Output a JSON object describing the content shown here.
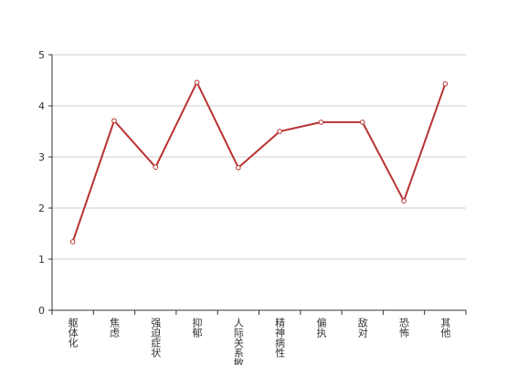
{
  "chart_data": {
    "type": "line",
    "categories": [
      "躯体化",
      "焦虑",
      "强迫症状",
      "抑郁",
      "人际关系敏感",
      "精神病性",
      "偏执",
      "敌对",
      "恐怖",
      "其他"
    ],
    "values": [
      1.34,
      3.71,
      2.8,
      4.46,
      2.79,
      3.5,
      3.68,
      3.68,
      2.14,
      4.43
    ],
    "color": "#b83232",
    "ylim": [
      0,
      5
    ],
    "yticks": [
      0,
      1,
      2,
      3,
      4,
      5
    ],
    "grid": true
  }
}
